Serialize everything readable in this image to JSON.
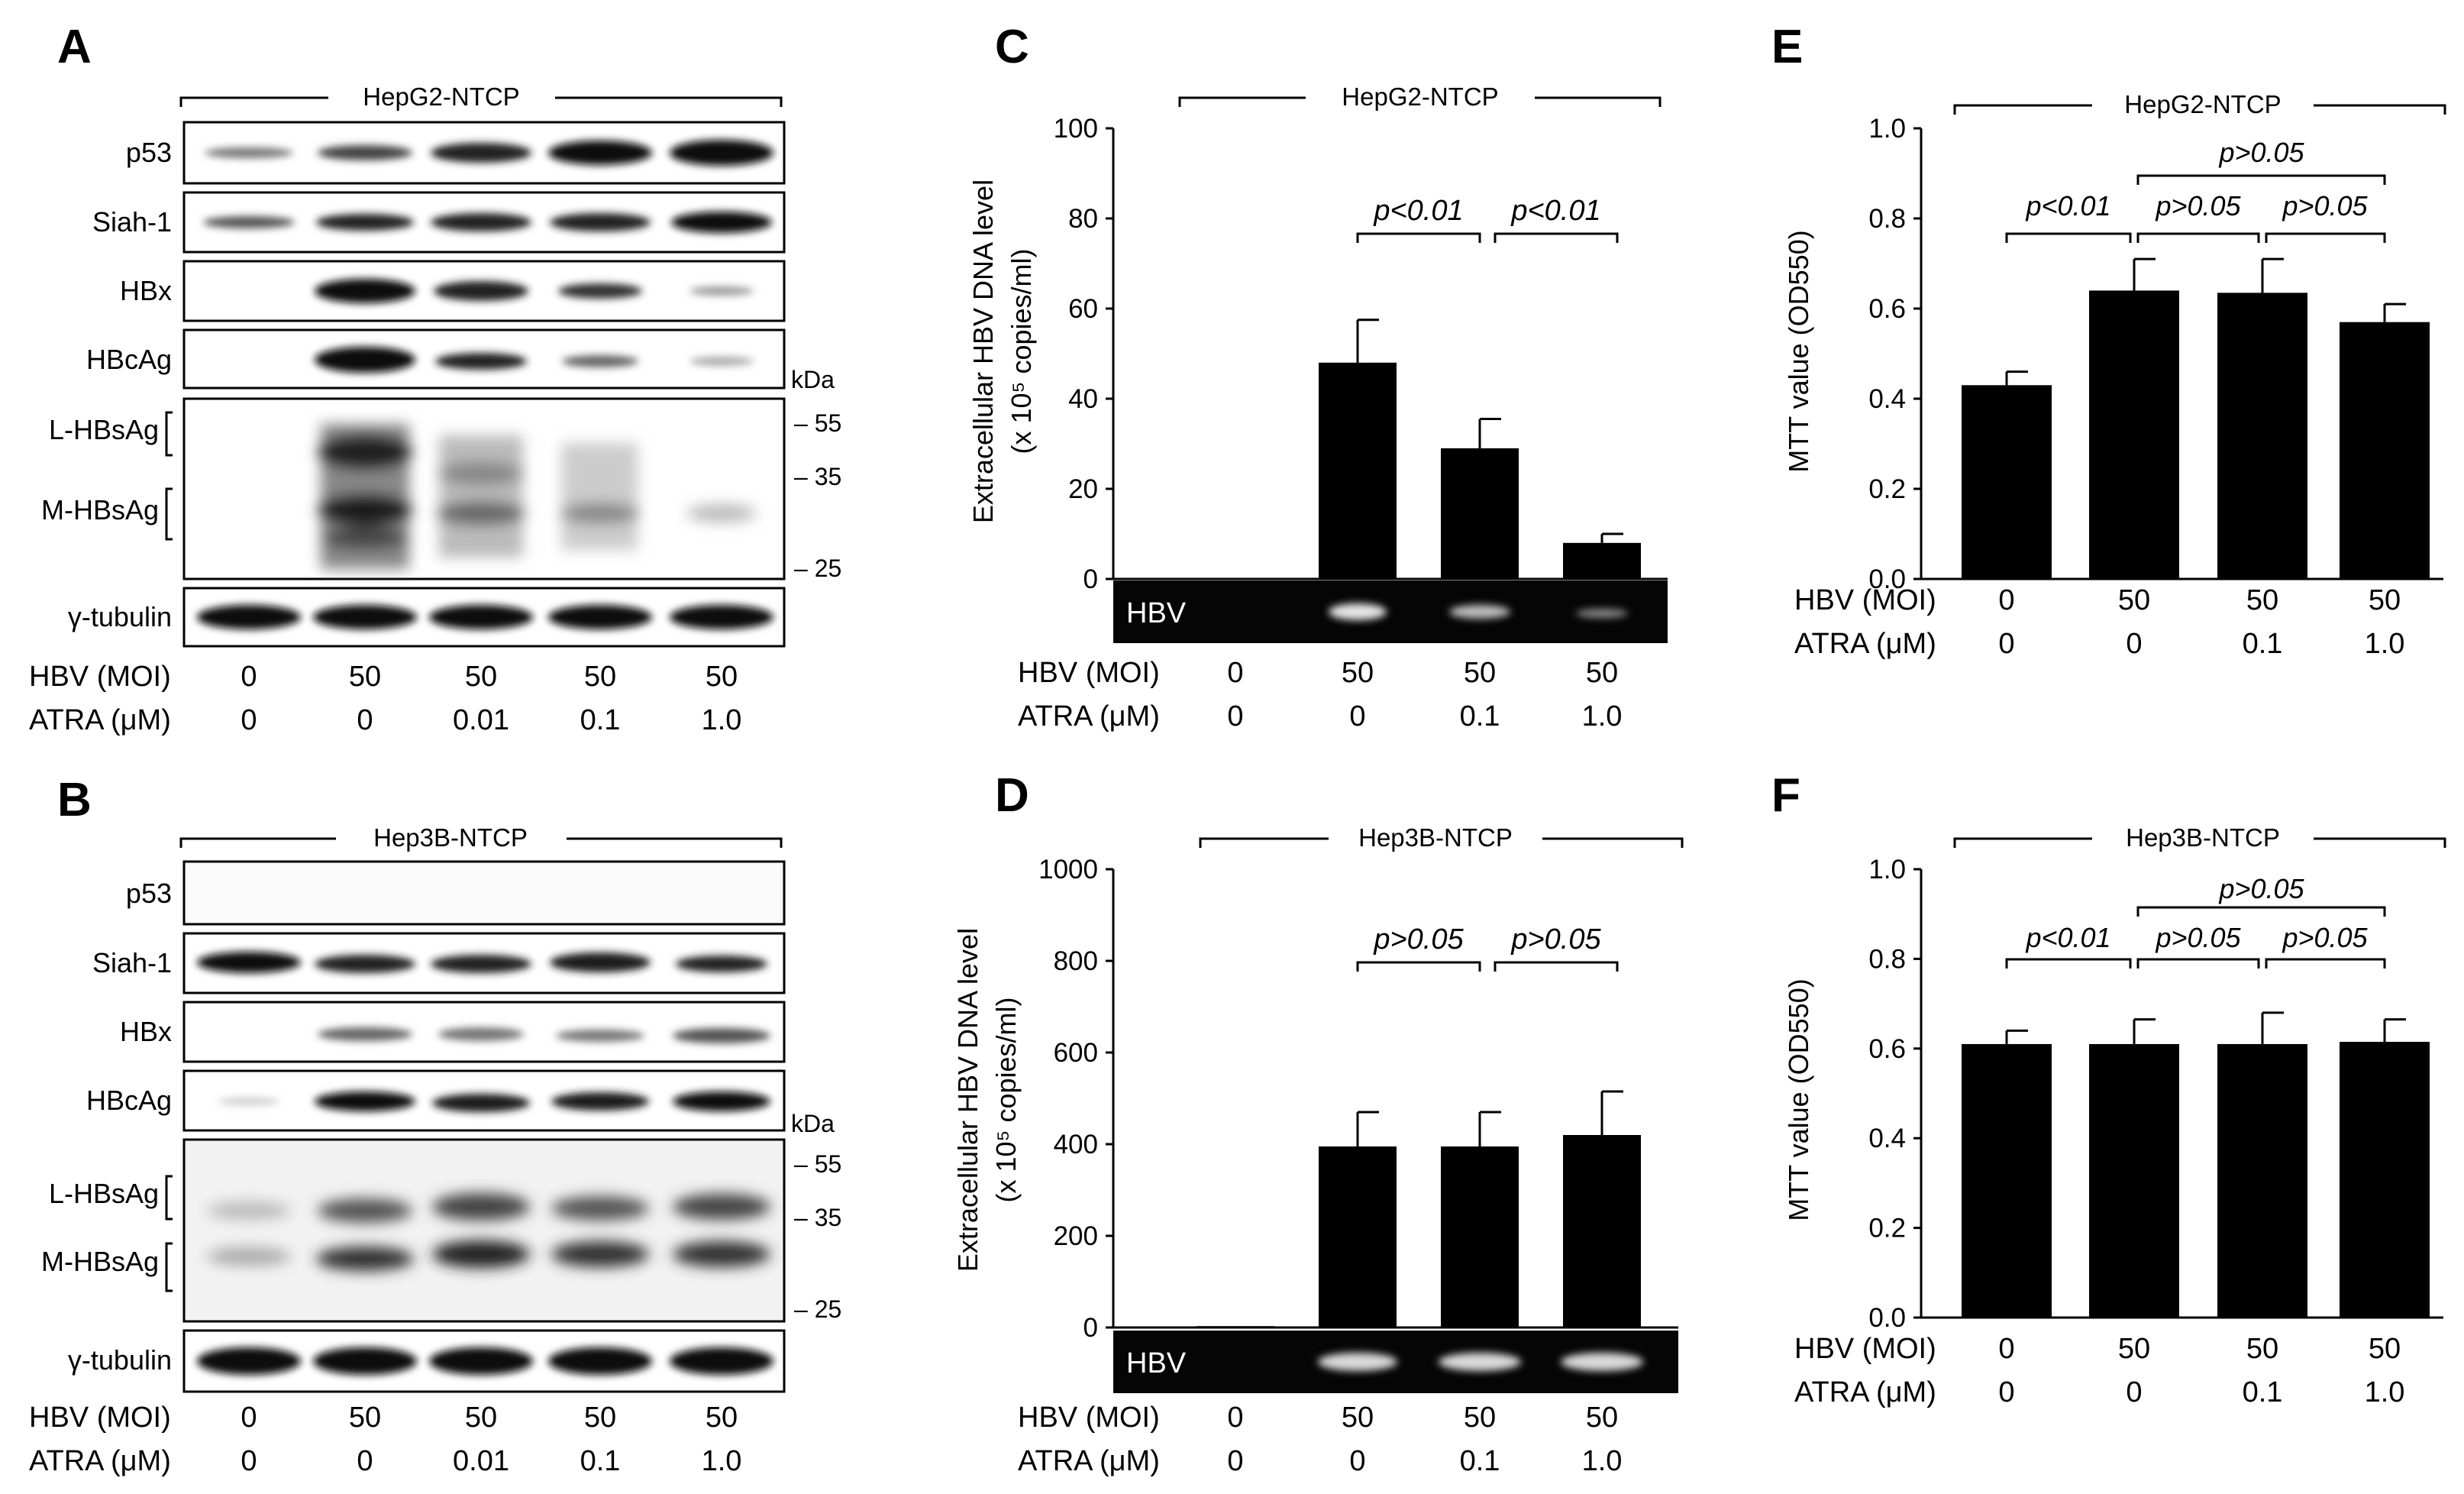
{
  "panels": {
    "A": {
      "letter": "A",
      "cell_line": "HepG2-NTCP",
      "rows": [
        "p53",
        "Siah-1",
        "HBx",
        "HBcAg",
        "L-HBsAg",
        "M-HBsAg",
        "γ-tubulin"
      ],
      "kda_title": "kDa",
      "markers": [
        "55",
        "35",
        "25"
      ],
      "hbv_label": "HBV (MOI)",
      "atra_label": "ATRA (μM)",
      "hbv": [
        "0",
        "50",
        "50",
        "50",
        "50"
      ],
      "atra": [
        "0",
        "0",
        "0.01",
        "0.1",
        "1.0"
      ]
    },
    "B": {
      "letter": "B",
      "cell_line": "Hep3B-NTCP",
      "rows": [
        "p53",
        "Siah-1",
        "HBx",
        "HBcAg",
        "L-HBsAg",
        "M-HBsAg",
        "γ-tubulin"
      ],
      "kda_title": "kDa",
      "markers": [
        "55",
        "35",
        "25"
      ],
      "hbv_label": "HBV (MOI)",
      "atra_label": "ATRA (μM)",
      "hbv": [
        "0",
        "50",
        "50",
        "50",
        "50"
      ],
      "atra": [
        "0",
        "0",
        "0.01",
        "0.1",
        "1.0"
      ]
    },
    "C": {
      "letter": "C",
      "cell_line": "HepG2-NTCP",
      "ylabel_line1": "Extracellular HBV DNA level",
      "ylabel_line2": "(x 10⁵ copies/ml)",
      "gel_label": "HBV",
      "hbv_label": "HBV (MOI)",
      "atra_label": "ATRA (μM)",
      "hbv": [
        "0",
        "50",
        "50",
        "50"
      ],
      "atra": [
        "0",
        "0",
        "0.1",
        "1.0"
      ],
      "sig": [
        "p<0.01",
        "p<0.01"
      ]
    },
    "D": {
      "letter": "D",
      "cell_line": "Hep3B-NTCP",
      "ylabel_line1": "Extracellular HBV DNA level",
      "ylabel_line2": "(x 10⁵ copies/ml)",
      "gel_label": "HBV",
      "hbv_label": "HBV (MOI)",
      "atra_label": "ATRA (μM)",
      "hbv": [
        "0",
        "50",
        "50",
        "50"
      ],
      "atra": [
        "0",
        "0",
        "0.1",
        "1.0"
      ],
      "sig": [
        "p>0.05",
        "p>0.05"
      ]
    },
    "E": {
      "letter": "E",
      "cell_line": "HepG2-NTCP",
      "ylabel": "MTT value (OD550)",
      "hbv_label": "HBV (MOI)",
      "atra_label": "ATRA (μM)",
      "hbv": [
        "0",
        "50",
        "50",
        "50"
      ],
      "atra": [
        "0",
        "0",
        "0.1",
        "1.0"
      ],
      "sig": [
        "p<0.01",
        "p>0.05",
        "p>0.05",
        "p>0.05"
      ]
    },
    "F": {
      "letter": "F",
      "cell_line": "Hep3B-NTCP",
      "ylabel": "MTT value (OD550)",
      "hbv_label": "HBV (MOI)",
      "atra_label": "ATRA (μM)",
      "hbv": [
        "0",
        "50",
        "50",
        "50"
      ],
      "atra": [
        "0",
        "0",
        "0.1",
        "1.0"
      ],
      "sig": [
        "p<0.01",
        "p>0.05",
        "p>0.05",
        "p>0.05"
      ]
    }
  },
  "chart_data": [
    {
      "panel": "C",
      "type": "bar",
      "categories": [
        "0/0",
        "50/0",
        "50/0.1",
        "50/1.0"
      ],
      "values": [
        0,
        48,
        29,
        8
      ],
      "errors": [
        0,
        9.5,
        6.5,
        2
      ],
      "ylim": [
        0,
        100
      ],
      "yticks": [
        "0",
        "20",
        "40",
        "60",
        "80",
        "100"
      ]
    },
    {
      "panel": "D",
      "type": "bar",
      "categories": [
        "0/0",
        "50/0",
        "50/0.1",
        "50/1.0"
      ],
      "values": [
        3,
        395,
        395,
        420
      ],
      "errors": [
        0,
        75,
        75,
        95
      ],
      "ylim": [
        0,
        1000
      ],
      "yticks": [
        "0",
        "200",
        "400",
        "600",
        "800",
        "1000"
      ]
    },
    {
      "panel": "E",
      "type": "bar",
      "categories": [
        "0/0",
        "50/0",
        "50/0.1",
        "50/1.0"
      ],
      "values": [
        0.43,
        0.64,
        0.635,
        0.57
      ],
      "errors": [
        0.03,
        0.07,
        0.075,
        0.04
      ],
      "ylim": [
        0,
        1.0
      ],
      "yticks": [
        "0.0",
        "0.2",
        "0.4",
        "0.6",
        "0.8",
        "1.0"
      ]
    },
    {
      "panel": "F",
      "type": "bar",
      "categories": [
        "0/0",
        "50/0",
        "50/0.1",
        "50/1.0"
      ],
      "values": [
        0.61,
        0.61,
        0.61,
        0.615
      ],
      "errors": [
        0.03,
        0.055,
        0.07,
        0.05
      ],
      "ylim": [
        0,
        1.0
      ],
      "yticks": [
        "0.0",
        "0.2",
        "0.4",
        "0.6",
        "0.8",
        "1.0"
      ]
    }
  ]
}
